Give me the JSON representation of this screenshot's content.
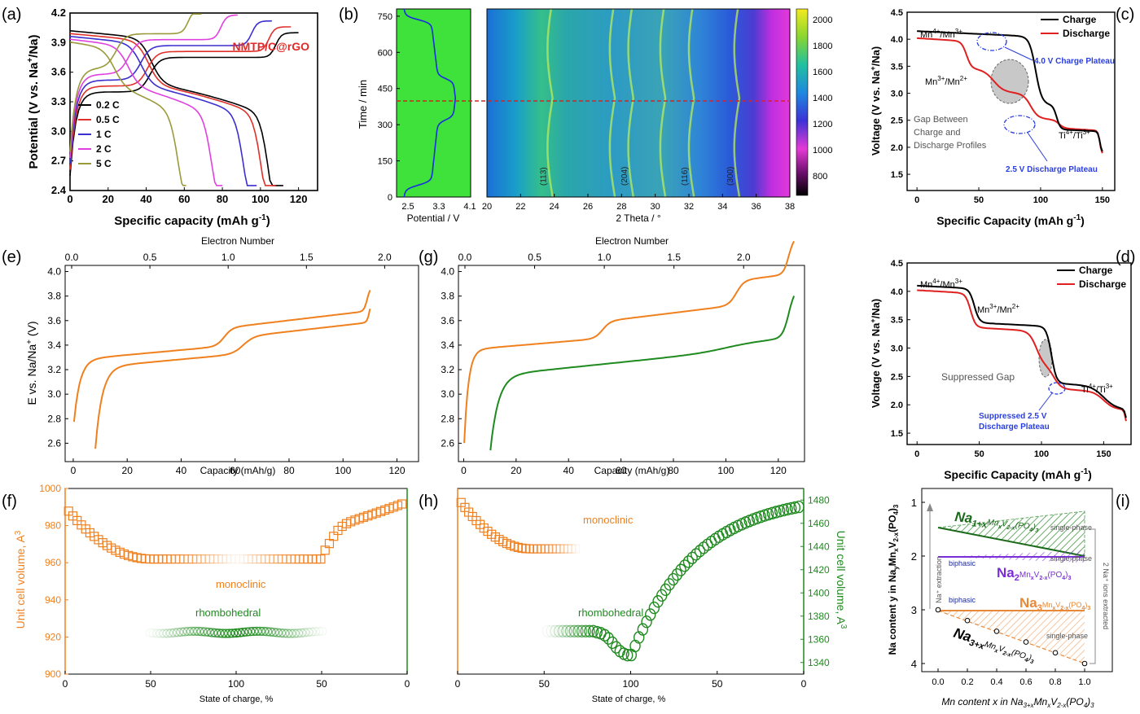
{
  "panels": {
    "a": {
      "tag": "(a)",
      "title": "NMTP/C@rGO",
      "xlabel": "Specific capacity (mAh g",
      "xlabel_sup": "-1",
      "xlabel_end": ")",
      "ylabel": "Potential (V vs. Na",
      "ylabel_sup": "+",
      "ylabel_end": "/Na)",
      "xlim": [
        0,
        130
      ],
      "ylim": [
        2.4,
        4.2
      ],
      "xticks": [
        0,
        20,
        40,
        60,
        80,
        100,
        120
      ],
      "yticks": [
        2.4,
        2.7,
        3.0,
        3.3,
        3.6,
        3.9,
        4.2
      ],
      "series": [
        {
          "name": "0.2 C",
          "color": "#000000",
          "cap": 112
        },
        {
          "name": "0.5 C",
          "color": "#e0302a",
          "cap": 108
        },
        {
          "name": "1 C",
          "color": "#3b2fd0",
          "cap": 98
        },
        {
          "name": "2 C",
          "color": "#e040e0",
          "cap": 80
        },
        {
          "name": "5 C",
          "color": "#9a9a3a",
          "cap": 61
        }
      ]
    },
    "b": {
      "tag": "(b)",
      "ylabel": "Time / min",
      "yticks": [
        0,
        150,
        300,
        450,
        600,
        750
      ],
      "ylim": [
        0,
        780
      ],
      "pot_xlabel": "Potential / V",
      "pot_xticks": [
        "2.5",
        "3.3",
        "4.1"
      ],
      "xlabel": "2 Theta / °",
      "xlim": [
        20,
        38
      ],
      "xticks": [
        20,
        22,
        24,
        26,
        28,
        30,
        32,
        34,
        36,
        38
      ],
      "peaks": [
        {
          "label": "(113)",
          "x": 23.9
        },
        {
          "label": "(204)",
          "x": 28.7
        },
        {
          "label": "(116)",
          "x": 32.3
        },
        {
          "label": "(300)",
          "x": 35.0
        }
      ],
      "colorbar_ticks": [
        800,
        1000,
        1200,
        1400,
        1600,
        1800,
        2000
      ],
      "colorbar_range": [
        650,
        2080
      ],
      "cut_time": 410
    },
    "c": {
      "tag": "(c)",
      "xlabel": "Specific Capacity (mAh g",
      "xlabel_sup": "-1",
      "xlabel_end": ")",
      "ylabel": "Voltage (V vs. Na",
      "ylabel_sup": "+",
      "ylabel_end": "/Na)",
      "xlim": [
        -8,
        160
      ],
      "ylim": [
        1.2,
        4.5
      ],
      "xticks": [
        0,
        50,
        100,
        150
      ],
      "yticks": [
        1.5,
        2.0,
        2.5,
        3.0,
        3.5,
        4.0,
        4.5
      ],
      "legend": [
        "Charge",
        "Discharge"
      ],
      "ann_mn43": "Mn",
      "ann_mn32": "Mn",
      "ann_ti": "Ti",
      "gap_text": [
        "Gap Between",
        "Charge and",
        "Discharge Profiles"
      ],
      "plateau_40": "4.0 V Charge Plateau",
      "plateau_25": "2.5 V Discharge Plateau"
    },
    "d": {
      "tag": "(d)",
      "xlabel": "Specific Capacity (mAh g",
      "xlabel_sup": "-1",
      "xlabel_end": ")",
      "ylabel": "Voltage (V vs. Na",
      "ylabel_sup": "+",
      "ylabel_end": "/Na)",
      "xlim": [
        -8,
        172
      ],
      "ylim": [
        1.3,
        4.5
      ],
      "xticks": [
        0,
        50,
        100,
        150
      ],
      "yticks": [
        1.5,
        2.0,
        2.5,
        3.0,
        3.5,
        4.0,
        4.5
      ],
      "legend": [
        "Charge",
        "Discharge"
      ],
      "gap_text": "Suppressed Gap",
      "plateau_text": [
        "Suppressed 2.5 V",
        "Discharge Plateau"
      ]
    },
    "e": {
      "tag": "(e)",
      "top_label": "Electron Number",
      "top_ticks": [
        "0.0",
        "0.5",
        "1.0",
        "1.5",
        "2.0"
      ],
      "xlabel": "Capacity (mAh/g)",
      "ylabel": "E vs. Na/Na",
      "ylabel_sup": "+",
      "ylabel_end": " (V)",
      "xlim": [
        -3,
        128
      ],
      "ylim": [
        2.45,
        4.05
      ],
      "xticks": [
        0,
        20,
        40,
        60,
        80,
        100,
        120
      ],
      "yticks": [
        "2.6",
        "2.8",
        "3.0",
        "3.2",
        "3.4",
        "3.6",
        "3.8",
        "4.0"
      ]
    },
    "g": {
      "tag": "(g)",
      "top_label": "Electron Number",
      "top_ticks": [
        "0.0",
        "0.5",
        "1.0",
        "1.5",
        "2.0"
      ],
      "xlabel": "Capacity (mAh/g)",
      "xlim": [
        -2,
        130
      ],
      "ylim": [
        2.45,
        4.05
      ],
      "xticks": [
        0,
        20,
        40,
        60,
        80,
        100,
        120
      ],
      "yticks": [
        "2.6",
        "2.8",
        "3.0",
        "3.2",
        "3.4",
        "3.6",
        "3.8",
        "4.0"
      ]
    },
    "f": {
      "tag": "(f)",
      "ylabel": "Unit cell volume, A",
      "ylabel_sup": "3",
      "xlabel": "State of charge, %",
      "xticks": [
        "0",
        "50",
        "100",
        "50",
        "0"
      ],
      "yticks": [
        900,
        920,
        940,
        960,
        980,
        1000
      ],
      "mono_label": "monoclinic",
      "rhombo_label": "rhombohedral"
    },
    "h": {
      "tag": "(h)",
      "ylabel": "Unit cell volume, A",
      "ylabel_sup": "3",
      "xlabel": "State of charge, %",
      "xticks": [
        "0",
        "50",
        "100",
        "50",
        "0"
      ],
      "yticks": [
        1340,
        1360,
        1380,
        1400,
        1420,
        1440,
        1460,
        1480
      ],
      "mono_label": "monoclinic",
      "rhombo_label": "rhombohedral"
    },
    "i": {
      "tag": "(i)",
      "ylabel": "Na content y in Na",
      "xlabel": "Mn content x in Na",
      "xticks": [
        "0.0",
        "0.2",
        "0.4",
        "0.6",
        "0.8",
        "1.0"
      ],
      "yticks": [
        "1",
        "2",
        "3",
        "4"
      ],
      "single_phase": "single-phase",
      "biphasic": "biphasic",
      "na_extraction": "Na⁺ extraction",
      "ions_extracted": "2 Na⁺ ions extracted",
      "formula_na1": "Na",
      "formula_na2": "Na",
      "formula_na3": "Na",
      "formula_na3x": "Na"
    }
  },
  "chart_data": [
    {
      "panel": "a",
      "type": "line",
      "xlabel": "Specific capacity (mAh g-1)",
      "ylabel": "Potential (V vs. Na+/Na)",
      "series": [
        {
          "name": "0.2 C",
          "capacity": 112
        },
        {
          "name": "0.5 C",
          "capacity": 108
        },
        {
          "name": "1 C",
          "capacity": 98
        },
        {
          "name": "2 C",
          "capacity": 80
        },
        {
          "name": "5 C",
          "capacity": 61
        }
      ]
    },
    {
      "panel": "b",
      "type": "heatmap",
      "xlabel": "2 Theta / °",
      "ylabel": "Time / min",
      "x_range": [
        20,
        38
      ],
      "y_range": [
        0,
        780
      ]
    },
    {
      "panel": "c",
      "type": "line",
      "series": [
        {
          "name": "Charge"
        },
        {
          "name": "Discharge"
        }
      ]
    },
    {
      "panel": "d",
      "type": "line",
      "series": [
        {
          "name": "Charge"
        },
        {
          "name": "Discharge"
        }
      ]
    },
    {
      "panel": "e",
      "type": "line",
      "xlabel": "Capacity (mAh/g)"
    },
    {
      "panel": "f",
      "type": "scatter",
      "ylabel": "Unit cell volume, A3"
    },
    {
      "panel": "g",
      "type": "line",
      "xlabel": "Capacity (mAh/g)"
    },
    {
      "panel": "h",
      "type": "scatter",
      "ylabel": "Unit cell volume, A3"
    },
    {
      "panel": "i",
      "type": "line",
      "points": [
        [
          0.0,
          3.0
        ],
        [
          0.2,
          3.2
        ],
        [
          0.4,
          3.4
        ],
        [
          0.6,
          3.6
        ],
        [
          0.8,
          3.8
        ],
        [
          1.0,
          4.0
        ]
      ]
    }
  ]
}
